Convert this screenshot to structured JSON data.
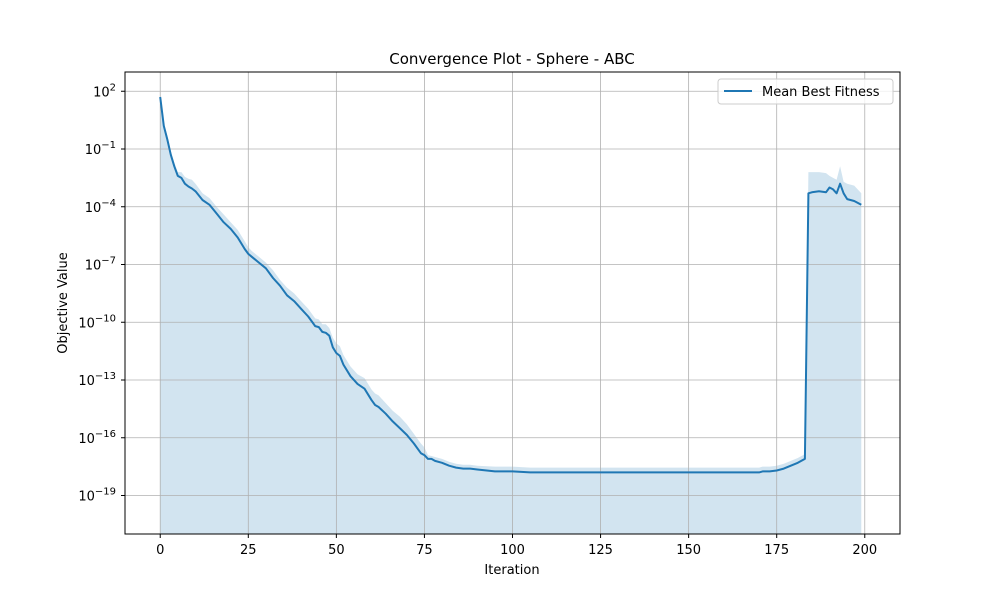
{
  "chart_data": {
    "type": "line",
    "title": "Convergence Plot - Sphere - ABC",
    "xlabel": "Iteration",
    "ylabel": "Objective Value",
    "xlim": [
      -10,
      210
    ],
    "ylim_log10": [
      -21.0,
      3.0
    ],
    "yscale": "log",
    "grid": true,
    "legend_position": "top-right",
    "x_ticks": [
      0,
      25,
      50,
      75,
      100,
      125,
      150,
      175,
      200
    ],
    "x_tick_labels": [
      "0",
      "25",
      "50",
      "75",
      "100",
      "125",
      "150",
      "175",
      "200"
    ],
    "y_ticks_log10": [
      2,
      -1,
      -4,
      -7,
      -10,
      -13,
      -16,
      -19
    ],
    "y_tick_labels": [
      {
        "base": "10",
        "exp": "2"
      },
      {
        "base": "10",
        "exp": "−1"
      },
      {
        "base": "10",
        "exp": "−4"
      },
      {
        "base": "10",
        "exp": "−7"
      },
      {
        "base": "10",
        "exp": "−10"
      },
      {
        "base": "10",
        "exp": "−13"
      },
      {
        "base": "10",
        "exp": "−16"
      },
      {
        "base": "10",
        "exp": "−19"
      }
    ],
    "colors": {
      "line": "#1f77b4",
      "band": "#1f77b4",
      "grid": "#b0b0b0"
    },
    "series": [
      {
        "name": "Mean Best Fitness",
        "x": [
          0,
          1,
          2,
          3,
          4,
          5,
          6,
          7,
          8,
          9,
          10,
          12,
          14,
          16,
          18,
          20,
          22,
          24,
          25,
          26,
          28,
          30,
          32,
          34,
          36,
          38,
          40,
          42,
          44,
          45,
          46,
          47,
          48,
          49,
          50,
          51,
          52,
          54,
          56,
          58,
          60,
          61,
          62,
          64,
          66,
          68,
          70,
          72,
          74,
          75,
          76,
          77,
          78,
          80,
          82,
          84,
          86,
          88,
          90,
          95,
          100,
          105,
          107,
          110,
          120,
          130,
          140,
          150,
          160,
          170,
          171,
          173,
          175,
          177,
          179,
          181,
          183,
          184,
          185,
          187,
          189,
          190,
          191,
          192,
          193,
          194,
          195,
          197,
          199
        ],
        "log10_y": [
          1.7,
          0.2,
          -0.5,
          -1.3,
          -1.9,
          -2.4,
          -2.5,
          -2.8,
          -2.95,
          -3.05,
          -3.2,
          -3.65,
          -3.9,
          -4.35,
          -4.8,
          -5.15,
          -5.6,
          -6.2,
          -6.45,
          -6.6,
          -6.9,
          -7.2,
          -7.7,
          -8.1,
          -8.6,
          -8.9,
          -9.3,
          -9.7,
          -10.2,
          -10.25,
          -10.5,
          -10.55,
          -10.7,
          -11.3,
          -11.6,
          -11.75,
          -12.2,
          -12.8,
          -13.2,
          -13.45,
          -14.05,
          -14.3,
          -14.4,
          -14.75,
          -15.15,
          -15.5,
          -15.85,
          -16.3,
          -16.8,
          -16.9,
          -17.1,
          -17.1,
          -17.2,
          -17.3,
          -17.45,
          -17.55,
          -17.6,
          -17.6,
          -17.65,
          -17.75,
          -17.75,
          -17.8,
          -17.8,
          -17.8,
          -17.8,
          -17.8,
          -17.8,
          -17.8,
          -17.8,
          -17.8,
          -17.75,
          -17.75,
          -17.7,
          -17.6,
          -17.45,
          -17.3,
          -17.1,
          -3.3,
          -3.25,
          -3.2,
          -3.25,
          -3.0,
          -3.1,
          -3.3,
          -2.8,
          -3.3,
          -3.6,
          -3.7,
          -3.9
        ]
      }
    ],
    "band": {
      "x": [
        0,
        1,
        2,
        3,
        4,
        5,
        6,
        7,
        8,
        9,
        10,
        12,
        14,
        16,
        18,
        20,
        22,
        24,
        25,
        26,
        28,
        30,
        32,
        34,
        36,
        38,
        40,
        42,
        44,
        45,
        46,
        47,
        48,
        49,
        50,
        51,
        52,
        54,
        56,
        58,
        60,
        61,
        62,
        64,
        66,
        68,
        70,
        72,
        74,
        75,
        76,
        77,
        78,
        80,
        82,
        84,
        86,
        88,
        90,
        95,
        100,
        105,
        107,
        110,
        120,
        130,
        140,
        150,
        160,
        170,
        171,
        173,
        175,
        177,
        179,
        181,
        183,
        184,
        185,
        187,
        189,
        190,
        191,
        192,
        193,
        194,
        195,
        197,
        199
      ],
      "upper_log10": [
        1.75,
        0.35,
        -0.3,
        -1.1,
        -1.7,
        -2.2,
        -2.2,
        -2.45,
        -2.55,
        -2.6,
        -2.8,
        -3.3,
        -3.55,
        -4.0,
        -4.4,
        -4.8,
        -5.2,
        -5.8,
        -6.1,
        -6.3,
        -6.6,
        -6.9,
        -7.3,
        -7.8,
        -8.2,
        -8.5,
        -8.9,
        -9.3,
        -9.8,
        -9.85,
        -10.1,
        -10.1,
        -10.3,
        -10.8,
        -11.1,
        -11.25,
        -11.7,
        -12.3,
        -12.7,
        -12.9,
        -13.5,
        -13.7,
        -13.8,
        -14.2,
        -14.6,
        -14.9,
        -15.3,
        -15.8,
        -16.3,
        -16.5,
        -16.9,
        -16.95,
        -17.0,
        -17.1,
        -17.25,
        -17.35,
        -17.4,
        -17.4,
        -17.45,
        -17.5,
        -17.5,
        -17.55,
        -17.55,
        -17.55,
        -17.55,
        -17.55,
        -17.55,
        -17.55,
        -17.55,
        -17.55,
        -17.5,
        -17.5,
        -17.45,
        -17.35,
        -17.2,
        -17.05,
        -16.85,
        -2.2,
        -2.2,
        -2.2,
        -2.25,
        -2.4,
        -2.5,
        -2.6,
        -1.9,
        -2.7,
        -2.8,
        -2.9,
        -3.3
      ]
    }
  },
  "legend": {
    "entries": [
      "Mean Best Fitness"
    ]
  }
}
